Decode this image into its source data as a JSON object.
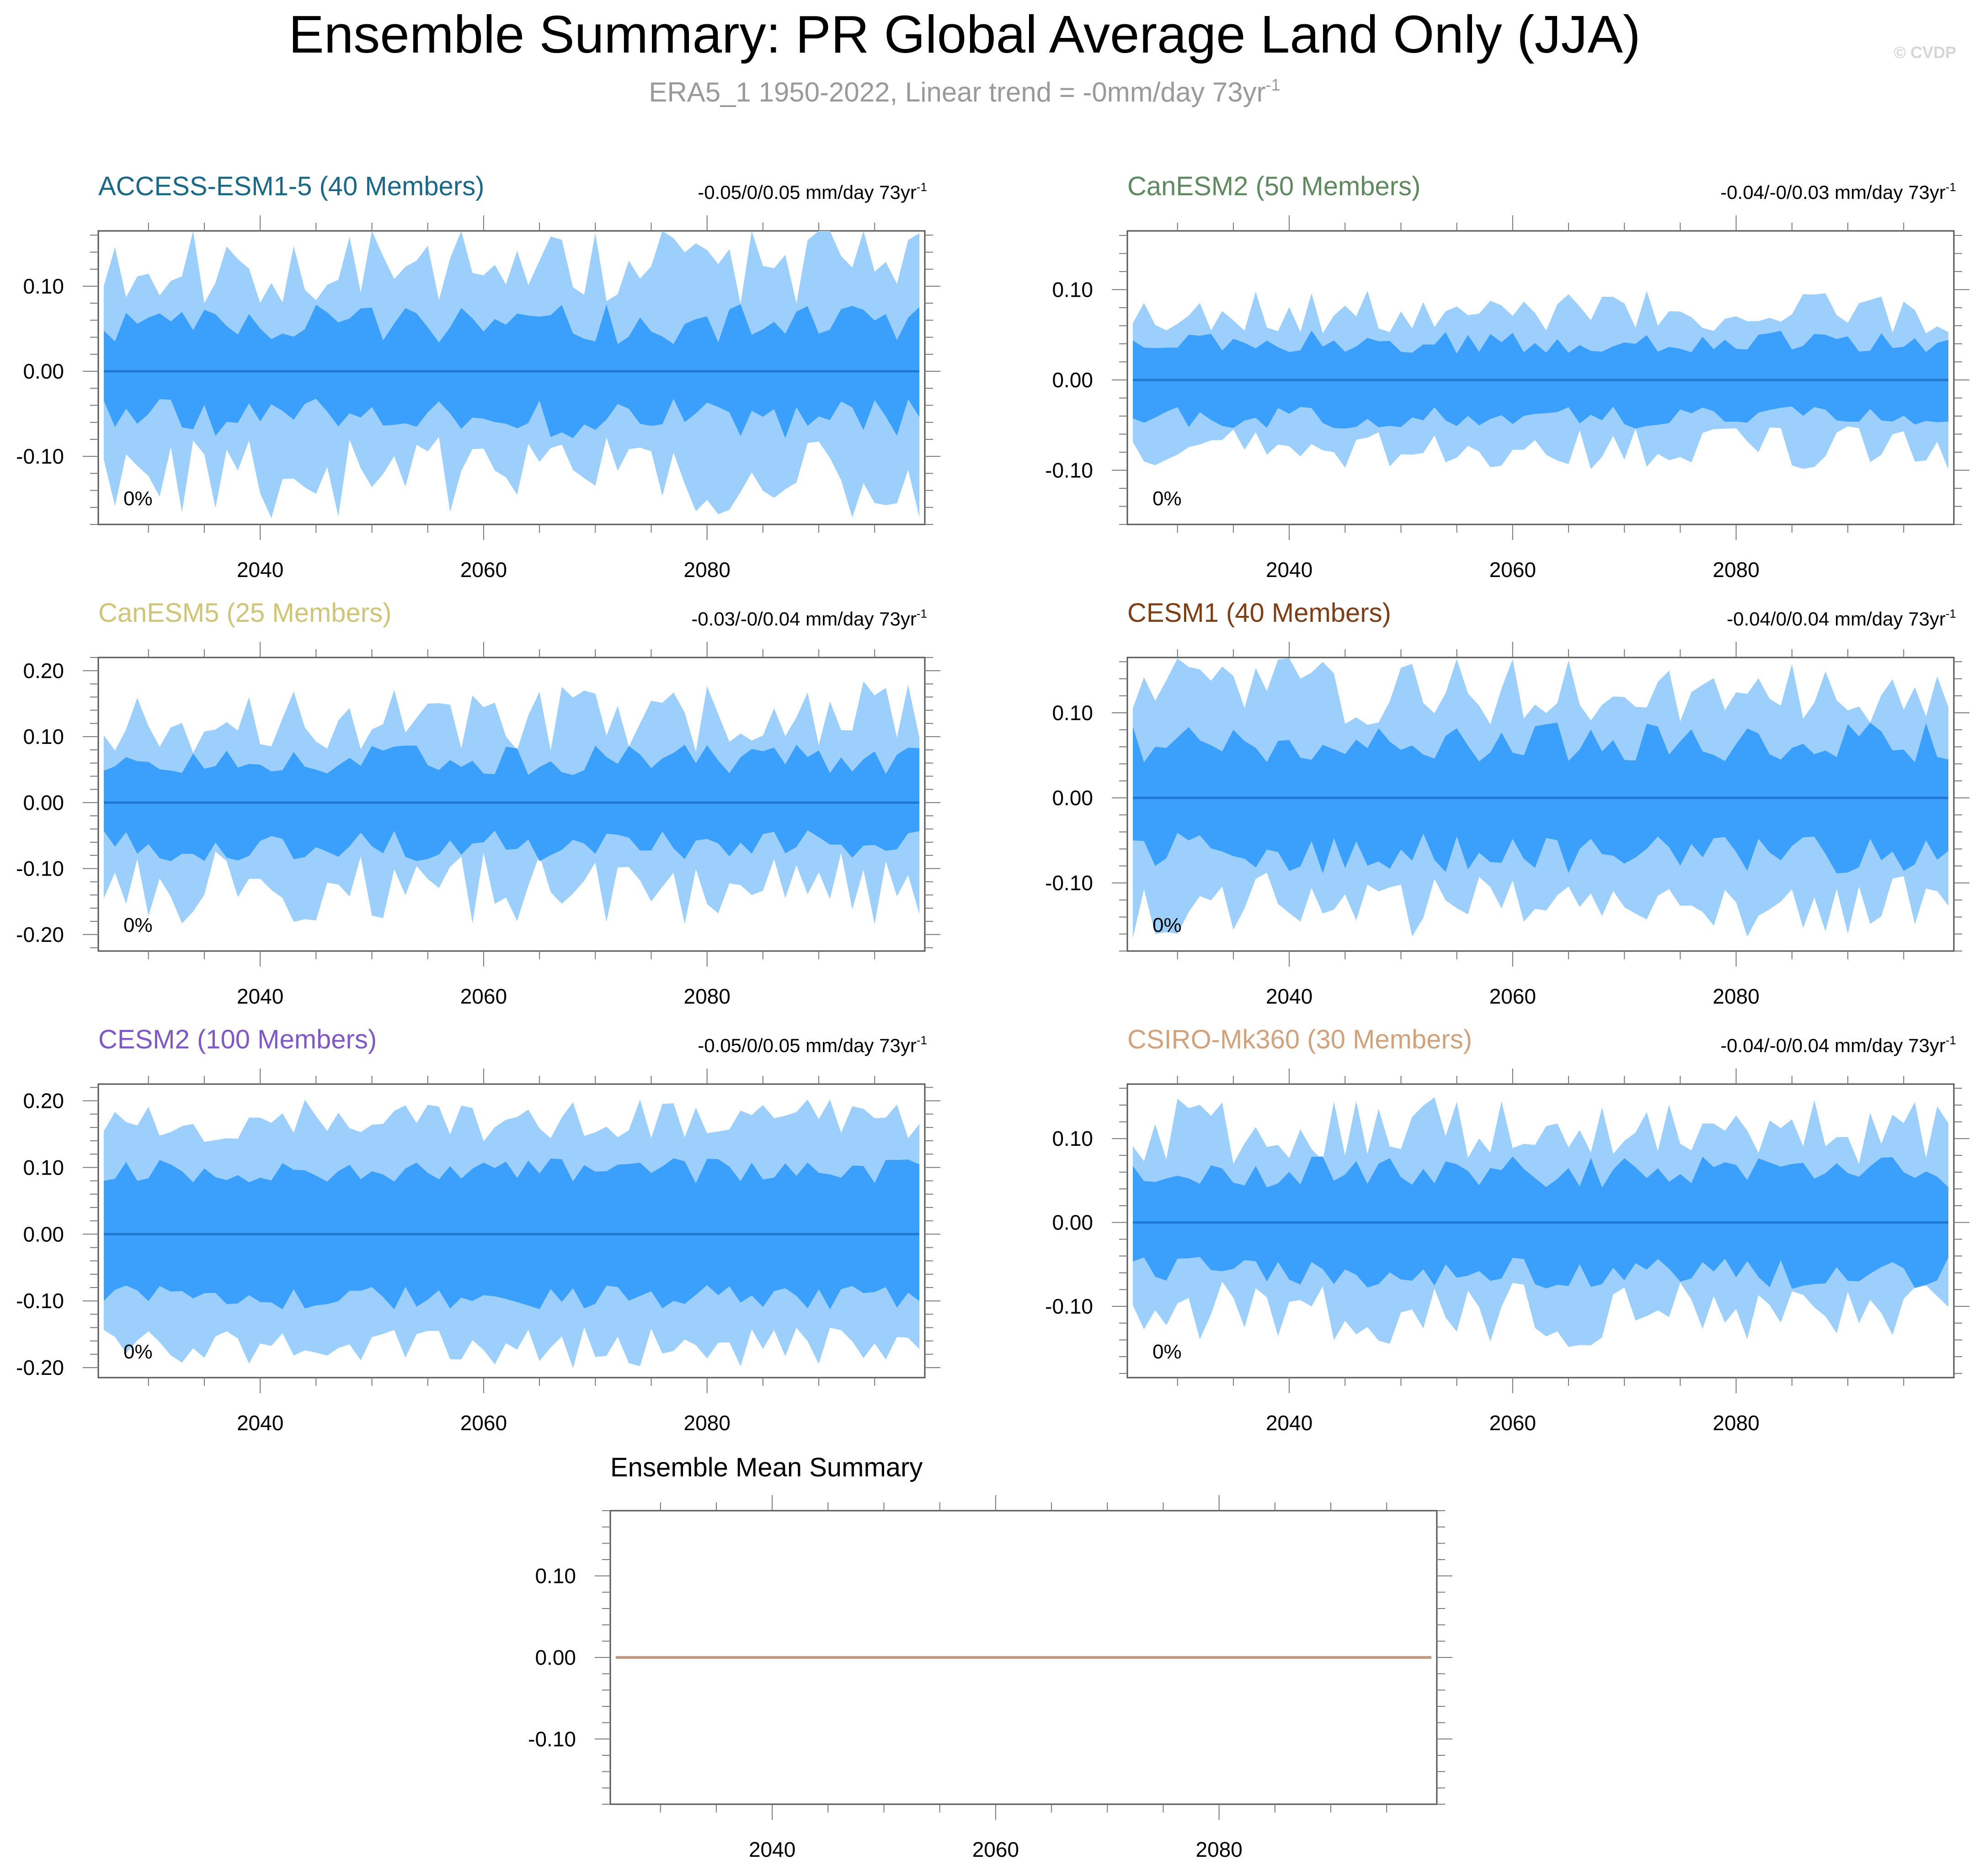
{
  "header": {
    "title": "Ensemble Summary: PR Global Average Land Only (JJA)",
    "subtitle": "ERA5_1 1950-2022, Linear trend = -0mm/day 73yr",
    "subtitle_sup": "-1",
    "watermark": "© CVDP"
  },
  "colors": {
    "outer_band": "#9ccffc",
    "inner_band": "#3aa0fb",
    "mean_line": "#1e78d0",
    "ensemble_mean_line": "#c29a80",
    "axis": "#444444",
    "title_text": "#000000",
    "subtitle_text": "#9a9a9a",
    "watermark_text": "#d6d6d6"
  },
  "chart_data": [
    {
      "type": "area",
      "model": "ACCESS-ESM1-5",
      "title": "ACCESS-ESM1-5 (40 Members)",
      "title_color": "#1a6886",
      "trend": "-0.05/0/0.05 mm/day 73yr",
      "trend_sup": "-1",
      "percent_label": "0%",
      "x_start": 2026,
      "x_end": 2099,
      "xlim": [
        2026,
        2099
      ],
      "ylim": [
        -0.18,
        0.165
      ],
      "yticks": [
        0.1,
        0.0,
        -0.1
      ],
      "ytick_labels": [
        "0.10",
        "0.00",
        "-0.10"
      ],
      "xticks": [
        2040,
        2060,
        2080
      ],
      "xtick_labels": [
        "2040",
        "2060",
        "2080"
      ],
      "outer_amp": 0.125,
      "outer_var": 0.03,
      "inner_amp": 0.055,
      "inner_var": 0.015,
      "mean": 0.0,
      "seed": 11,
      "series": [
        {
          "name": "ensemble mean",
          "values": "0.00 (constant)"
        }
      ]
    },
    {
      "type": "area",
      "model": "CanESM2",
      "title": "CanESM2 (50 Members)",
      "title_color": "#5f8a5f",
      "trend": "-0.04/-0/0.03 mm/day 73yr",
      "trend_sup": "-1",
      "percent_label": "0%",
      "x_start": 2026,
      "x_end": 2099,
      "xlim": [
        2026,
        2099
      ],
      "ylim": [
        -0.16,
        0.165
      ],
      "yticks": [
        0.1,
        0.0,
        -0.1
      ],
      "ytick_labels": [
        "0.10",
        "0.00",
        "-0.10"
      ],
      "xticks": [
        2040,
        2060,
        2080
      ],
      "xtick_labels": [
        "2040",
        "2060",
        "2080"
      ],
      "outer_amp": 0.075,
      "outer_var": 0.015,
      "inner_amp": 0.042,
      "inner_var": 0.008,
      "mean": 0.0,
      "seed": 23,
      "series": [
        {
          "name": "ensemble mean",
          "values": "0.00 (constant)"
        }
      ]
    },
    {
      "type": "area",
      "model": "CanESM5",
      "title": "CanESM5 (25 Members)",
      "title_color": "#cfc579",
      "trend": "-0.03/-0/0.04 mm/day 73yr",
      "trend_sup": "-1",
      "percent_label": "0%",
      "x_start": 2026,
      "x_end": 2099,
      "xlim": [
        2026,
        2099
      ],
      "ylim": [
        -0.225,
        0.22
      ],
      "yticks": [
        0.2,
        0.1,
        0.0,
        -0.1,
        -0.2
      ],
      "ytick_labels": [
        "0.20",
        "0.10",
        "0.00",
        "-0.10",
        "-0.20"
      ],
      "xticks": [
        2040,
        2060,
        2080
      ],
      "xtick_labels": [
        "2040",
        "2060",
        "2080"
      ],
      "outer_amp": 0.13,
      "outer_var": 0.035,
      "inner_amp": 0.065,
      "inner_var": 0.015,
      "mean": 0.0,
      "seed": 37,
      "series": [
        {
          "name": "ensemble mean",
          "values": "0.00 (constant)"
        }
      ]
    },
    {
      "type": "area",
      "model": "CESM1",
      "title": "CESM1 (40 Members)",
      "title_color": "#7e3f17",
      "trend": "-0.04/0/0.04 mm/day 73yr",
      "trend_sup": "-1",
      "percent_label": "0%",
      "x_start": 2026,
      "x_end": 2099,
      "xlim": [
        2026,
        2099
      ],
      "ylim": [
        -0.18,
        0.165
      ],
      "yticks": [
        0.1,
        0.0,
        -0.1
      ],
      "ytick_labels": [
        "0.10",
        "0.00",
        "-0.10"
      ],
      "xticks": [
        2040,
        2060,
        2080
      ],
      "xtick_labels": [
        "2040",
        "2060",
        "2080"
      ],
      "outer_amp": 0.125,
      "outer_var": 0.025,
      "inner_amp": 0.065,
      "inner_var": 0.015,
      "mean": 0.0,
      "seed": 41,
      "series": [
        {
          "name": "ensemble mean",
          "values": "0.00 (constant)"
        }
      ]
    },
    {
      "type": "area",
      "model": "CESM2",
      "title": "CESM2 (100 Members)",
      "title_color": "#7f59c4",
      "trend": "-0.05/0/0.05 mm/day 73yr",
      "trend_sup": "-1",
      "percent_label": "0%",
      "x_start": 2026,
      "x_end": 2099,
      "xlim": [
        2026,
        2099
      ],
      "ylim": [
        -0.215,
        0.225
      ],
      "yticks": [
        0.2,
        0.1,
        0.0,
        -0.1,
        -0.2
      ],
      "ytick_labels": [
        "0.20",
        "0.10",
        "0.00",
        "-0.10",
        "-0.20"
      ],
      "xticks": [
        2040,
        2060,
        2080
      ],
      "xtick_labels": [
        "2040",
        "2060",
        "2080"
      ],
      "outer_amp": 0.17,
      "outer_var": 0.02,
      "inner_amp": 0.095,
      "inner_var": 0.012,
      "mean": 0.0,
      "seed": 53,
      "series": [
        {
          "name": "ensemble mean",
          "values": "0.00 (constant)"
        }
      ]
    },
    {
      "type": "area",
      "model": "CSIRO-Mk360",
      "title": "CSIRO-Mk360 (30 Members)",
      "title_color": "#d1a37c",
      "trend": "-0.04/-0/0.04 mm/day 73yr",
      "trend_sup": "-1",
      "percent_label": "0%",
      "x_start": 2026,
      "x_end": 2099,
      "xlim": [
        2026,
        2099
      ],
      "ylim": [
        -0.185,
        0.165
      ],
      "yticks": [
        0.1,
        0.0,
        -0.1
      ],
      "ytick_labels": [
        "0.10",
        "0.00",
        "-0.10"
      ],
      "xticks": [
        2040,
        2060,
        2080
      ],
      "xtick_labels": [
        "2040",
        "2060",
        "2080"
      ],
      "outer_amp": 0.11,
      "outer_var": 0.025,
      "inner_amp": 0.06,
      "inner_var": 0.012,
      "mean": 0.0,
      "seed": 67,
      "series": [
        {
          "name": "ensemble mean",
          "values": "0.00 (constant)"
        }
      ]
    },
    {
      "type": "line",
      "model": "Ensemble Mean",
      "title": "Ensemble Mean Summary",
      "title_color": "#000000",
      "x_start": 2026,
      "x_end": 2099,
      "xlim": [
        2026,
        2099
      ],
      "ylim": [
        -0.18,
        0.18
      ],
      "yticks": [
        0.1,
        0.0,
        -0.1
      ],
      "ytick_labels": [
        "0.10",
        "0.00",
        "-0.10"
      ],
      "xticks": [
        2040,
        2060,
        2080
      ],
      "xtick_labels": [
        "2040",
        "2060",
        "2080"
      ],
      "series": [
        {
          "name": "all models ensemble mean",
          "values": "0.00 (constant)"
        }
      ]
    }
  ]
}
